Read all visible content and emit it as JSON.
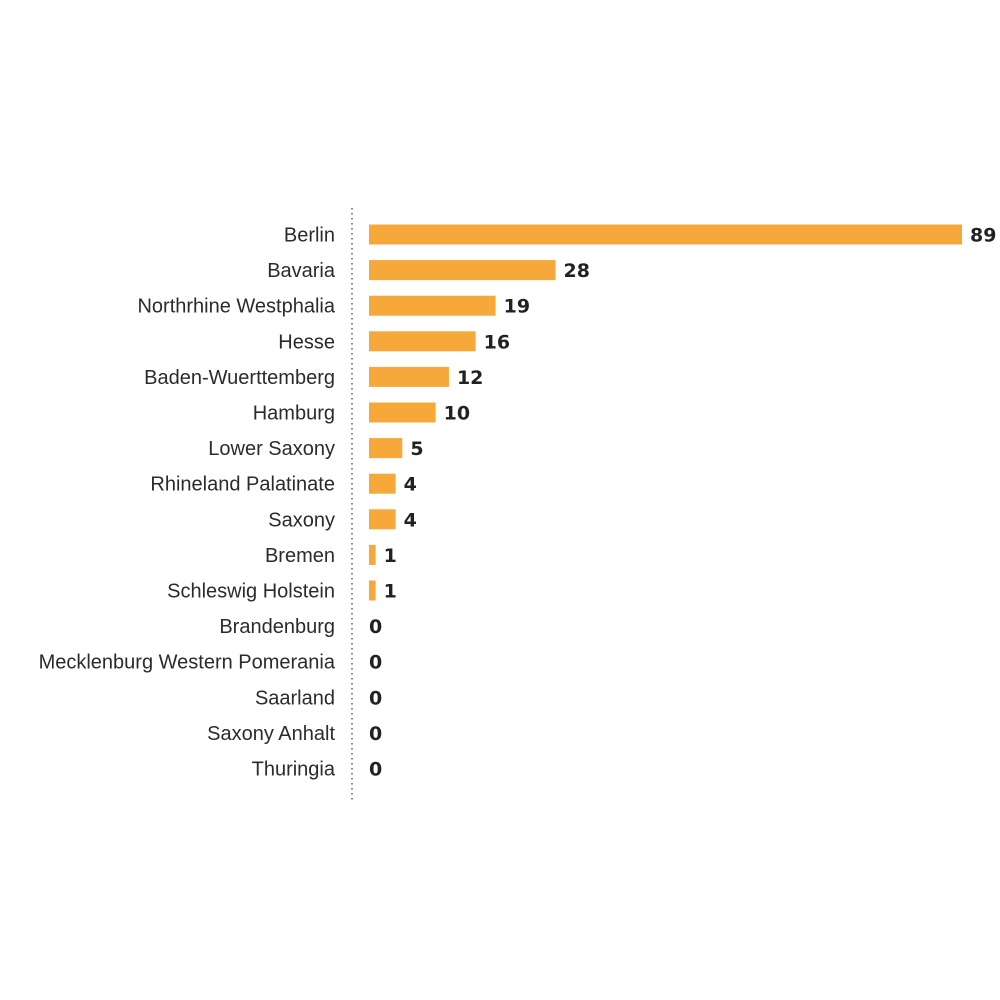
{
  "chart_data": {
    "type": "bar",
    "orientation": "horizontal",
    "title": "",
    "xlabel": "",
    "ylabel": "",
    "grid": false,
    "bar_color": "#f6a83a",
    "axis_line": "dotted",
    "xlim": [
      0,
      89
    ],
    "categories": [
      "Berlin",
      "Bavaria",
      "Northrhine Westphalia",
      "Hesse",
      "Baden-Wuerttemberg",
      "Hamburg",
      "Lower Saxony",
      "Rhineland Palatinate",
      "Saxony",
      "Bremen",
      "Schleswig Holstein",
      "Brandenburg",
      "Mecklenburg Western Pomerania",
      "Saarland",
      "Saxony Anhalt",
      "Thuringia"
    ],
    "values": [
      89,
      28,
      19,
      16,
      12,
      10,
      5,
      4,
      4,
      1,
      1,
      0,
      0,
      0,
      0,
      0
    ]
  }
}
